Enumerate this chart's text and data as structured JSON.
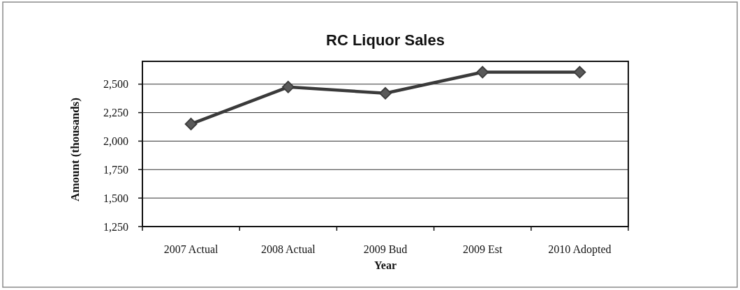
{
  "chart_data": {
    "type": "line",
    "title": "RC Liquor Sales",
    "xlabel": "Year",
    "ylabel": "Amount (thousands)",
    "categories": [
      "2007 Actual",
      "2008 Actual",
      "2009 Bud",
      "2009 Est",
      "2010 Adopted"
    ],
    "series": [
      {
        "color": "#3a3a3a",
        "values": [
          2150,
          2475,
          2420,
          2605,
          2605
        ]
      }
    ],
    "ylim": [
      1250,
      2700
    ],
    "yticks": [
      {
        "value": 1250,
        "label": "1,250"
      },
      {
        "value": 1500,
        "label": "1,500"
      },
      {
        "value": 1750,
        "label": "1,750"
      },
      {
        "value": 2000,
        "label": "2,000"
      },
      {
        "value": 2250,
        "label": "2,250"
      },
      {
        "value": 2500,
        "label": "2,500"
      }
    ],
    "grid": "y",
    "marker": "diamond",
    "line_style": "solid"
  }
}
